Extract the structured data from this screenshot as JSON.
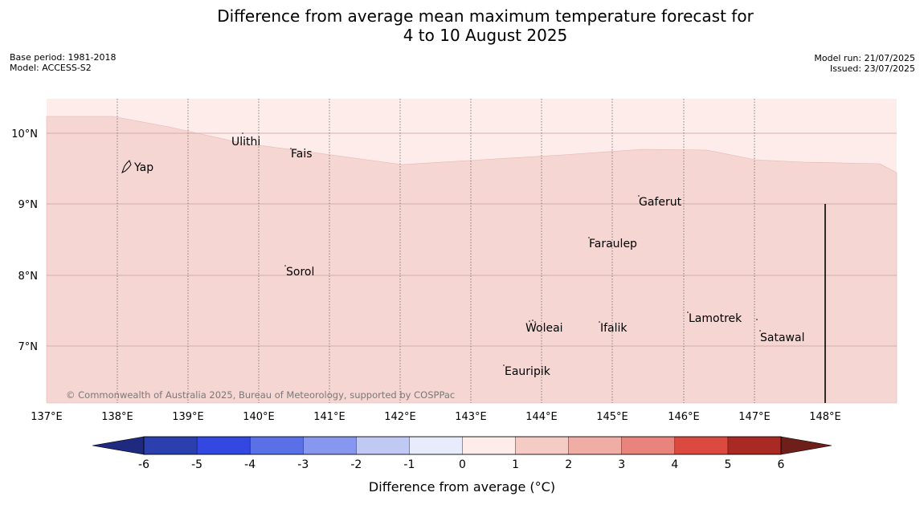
{
  "title_line1": "Difference from average mean maximum temperature forecast for",
  "title_line2": "4 to 10 August 2025",
  "meta_left": {
    "base_period": "Base period: 1981-2018",
    "model": "Model: ACCESS-S2"
  },
  "meta_right": {
    "model_run": "Model run: 21/07/2025",
    "issued": "Issued: 23/07/2025"
  },
  "copyright": "© Commonwealth of Australia 2025, Bureau of Meteorology, supported by COSPPac",
  "lon_labels": [
    "137°E",
    "138°E",
    "139°E",
    "140°E",
    "141°E",
    "142°E",
    "143°E",
    "144°E",
    "145°E",
    "146°E",
    "147°E",
    "148°E"
  ],
  "lat_labels": [
    "10°N",
    "9°N",
    "8°N",
    "7°N"
  ],
  "places": [
    {
      "name": "Ulithi"
    },
    {
      "name": "Yap"
    },
    {
      "name": "Fais"
    },
    {
      "name": "Gaferut"
    },
    {
      "name": "Faraulep"
    },
    {
      "name": "Sorol"
    },
    {
      "name": "Lamotrek"
    },
    {
      "name": "Woleai"
    },
    {
      "name": "Ifalik"
    },
    {
      "name": "Satawal"
    },
    {
      "name": "Eauripik"
    }
  ],
  "colorbar": {
    "tick_labels": [
      "-6",
      "-5",
      "-4",
      "-3",
      "-2",
      "-1",
      "0",
      "1",
      "2",
      "3",
      "4",
      "5",
      "6"
    ],
    "colors": [
      "#2b3fae",
      "#3248e0",
      "#5a70e6",
      "#8796ee",
      "#c0c8f4",
      "#e8ebfb",
      "#fdecea",
      "#f5cbc6",
      "#efada6",
      "#e8847c",
      "#dc4a3f",
      "#a92923"
    ],
    "under_color": "#1d2a80",
    "over_color": "#6e1f1a",
    "label": "Difference from average (°C)"
  },
  "legend_fill_colors": {
    "light_band": "#fdecea",
    "main_band": "#f5d6d3"
  }
}
